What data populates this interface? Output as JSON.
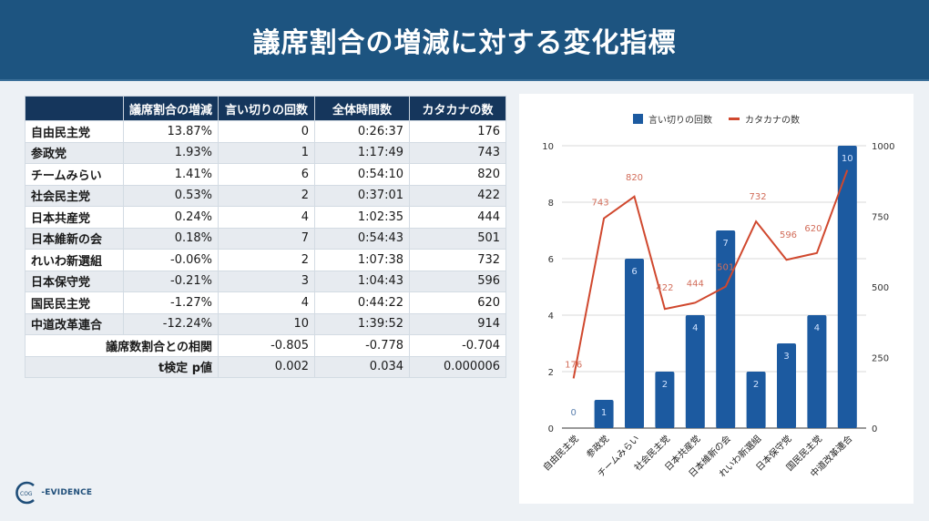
{
  "header": {
    "title": "議席割合の増減に対する変化指標"
  },
  "table": {
    "columns": [
      "",
      "議席割合の増減",
      "言い切りの回数",
      "全体時間数",
      "カタカナの数"
    ],
    "rows": [
      {
        "party": "自由民主党",
        "seat_change": "13.87%",
        "assertions": "0",
        "total_time": "0:26:37",
        "katakana": "176"
      },
      {
        "party": "参政党",
        "seat_change": "1.93%",
        "assertions": "1",
        "total_time": "1:17:49",
        "katakana": "743"
      },
      {
        "party": "チームみらい",
        "seat_change": "1.41%",
        "assertions": "6",
        "total_time": "0:54:10",
        "katakana": "820"
      },
      {
        "party": "社会民主党",
        "seat_change": "0.53%",
        "assertions": "2",
        "total_time": "0:37:01",
        "katakana": "422"
      },
      {
        "party": "日本共産党",
        "seat_change": "0.24%",
        "assertions": "4",
        "total_time": "1:02:35",
        "katakana": "444"
      },
      {
        "party": "日本維新の会",
        "seat_change": "0.18%",
        "assertions": "7",
        "total_time": "0:54:43",
        "katakana": "501"
      },
      {
        "party": "れいわ新選組",
        "seat_change": "-0.06%",
        "assertions": "2",
        "total_time": "1:07:38",
        "katakana": "732"
      },
      {
        "party": "日本保守党",
        "seat_change": "-0.21%",
        "assertions": "3",
        "total_time": "1:04:43",
        "katakana": "596"
      },
      {
        "party": "国民民主党",
        "seat_change": "-1.27%",
        "assertions": "4",
        "total_time": "0:44:22",
        "katakana": "620"
      },
      {
        "party": "中道改革連合",
        "seat_change": "-12.24%",
        "assertions": "10",
        "total_time": "1:39:52",
        "katakana": "914"
      }
    ],
    "stats": [
      {
        "label": "議席数割合との相関",
        "assertions": "-0.805",
        "total_time": "-0.778",
        "katakana": "-0.704"
      },
      {
        "label": "t検定 p値",
        "assertions": "0.002",
        "total_time": "0.034",
        "katakana": "0.000006"
      }
    ]
  },
  "chart_data": {
    "type": "bar",
    "title": "",
    "categories": [
      "自由民主党",
      "参政党",
      "チームみらい",
      "社会民主党",
      "日本共産党",
      "日本維新の会",
      "れいわ新選組",
      "日本保守党",
      "国民民主党",
      "中道改革連合"
    ],
    "series": [
      {
        "name": "言い切りの回数",
        "type": "bar",
        "axis": "left",
        "color": "#1c5aa0",
        "values": [
          0,
          1,
          6,
          2,
          4,
          7,
          2,
          3,
          4,
          10
        ]
      },
      {
        "name": "カタカナの数",
        "type": "line",
        "axis": "right",
        "color": "#d0482e",
        "values": [
          176,
          743,
          820,
          422,
          444,
          501,
          732,
          596,
          620,
          914
        ]
      }
    ],
    "left_axis": {
      "ticks": [
        "0",
        "2",
        "4",
        "6",
        "8",
        "10"
      ],
      "ylim": [
        0,
        10
      ]
    },
    "right_axis": {
      "ticks": [
        "0",
        "250",
        "500",
        "750",
        "1000"
      ],
      "ylim": [
        0,
        1000
      ]
    },
    "legend_position": "top",
    "grid": true,
    "xlabel": "",
    "ylabel": ""
  },
  "colors": {
    "header_bg": "#1d5480",
    "table_header_bg": "#15365c",
    "bar": "#1c5aa0",
    "line": "#d0482e",
    "page_bg": "#edf1f5"
  },
  "logo": {
    "text": "EVIDENCE",
    "prefix": "COG"
  }
}
